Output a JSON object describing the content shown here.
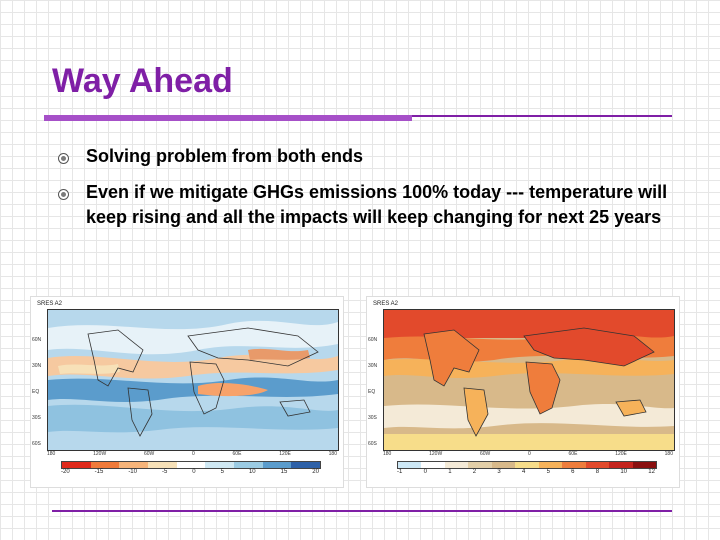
{
  "slide": {
    "title": "Way Ahead",
    "bullets": [
      "Solving problem from both ends",
      "Even if we mitigate GHGs emissions 100% today --- temperature will keep rising and all the impacts will keep changing for next 25 years"
    ]
  },
  "maps": [
    {
      "label": "SRES A2",
      "colorbar_ticks": [
        "-20",
        "-15",
        "-10",
        "-5",
        "0",
        "5",
        "10",
        "15",
        "20"
      ],
      "colorbar_colors": [
        "#e02a1c",
        "#f07a3a",
        "#f6b47a",
        "#f7e1b8",
        "#ffffff",
        "#cfe8f3",
        "#9bcbe3",
        "#5b9ccc",
        "#2e61a8"
      ],
      "lat_ticks": [
        "60N",
        "30N",
        "EQ",
        "30S",
        "60S"
      ],
      "lon_ticks": [
        "180",
        "120W",
        "60W",
        "0",
        "60E",
        "120E",
        "180"
      ]
    },
    {
      "label": "SRES A2",
      "colorbar_ticks": [
        "-1",
        "0",
        "1",
        "2",
        "3",
        "4",
        "5",
        "6",
        "8",
        "10",
        "12"
      ],
      "colorbar_colors": [
        "#cde8f6",
        "#ffffff",
        "#f4ead7",
        "#e3cfa8",
        "#d8b98a",
        "#f7dd8a",
        "#f6b25a",
        "#ef7d3c",
        "#e24a2c",
        "#c4241e",
        "#8a1010"
      ],
      "lat_ticks": [
        "60N",
        "30N",
        "EQ",
        "30S",
        "60S"
      ],
      "lon_ticks": [
        "180",
        "120W",
        "60W",
        "0",
        "60E",
        "120E",
        "180"
      ]
    }
  ]
}
